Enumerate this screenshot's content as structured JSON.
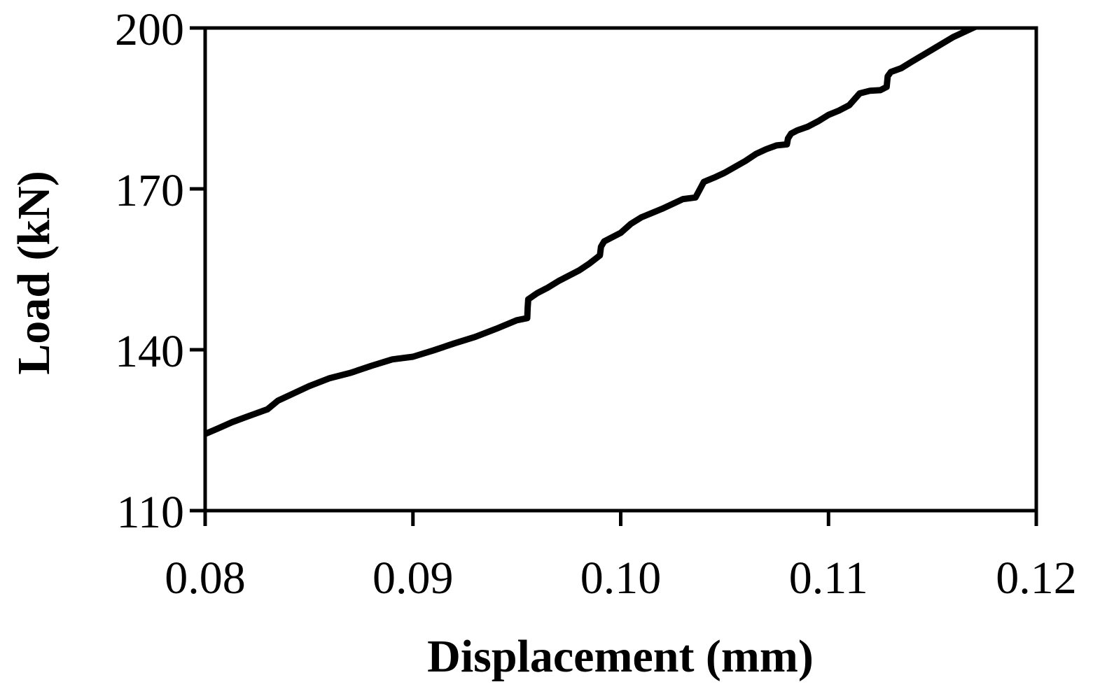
{
  "chart_data": {
    "type": "line",
    "title": "",
    "xlabel": "Displacement (mm)",
    "ylabel": "Load (kN)",
    "xlim": [
      0.08,
      0.12
    ],
    "ylim": [
      110,
      200
    ],
    "xticks": [
      0.08,
      0.09,
      0.1,
      0.11,
      0.12
    ],
    "xtick_labels": [
      "0.08",
      "0.09",
      "0.10",
      "0.11",
      "0.12"
    ],
    "yticks": [
      110,
      140,
      170,
      200
    ],
    "ytick_labels": [
      "110",
      "140",
      "170",
      "200"
    ],
    "grid": false,
    "legend": "none",
    "line_color": "#000000",
    "series": [
      {
        "x": [
          0.08,
          0.0806,
          0.0813,
          0.082,
          0.083,
          0.0835,
          0.084,
          0.085,
          0.086,
          0.087,
          0.088,
          0.089,
          0.09,
          0.091,
          0.092,
          0.093,
          0.094,
          0.095,
          0.0955,
          0.09552,
          0.09555,
          0.096,
          0.0965,
          0.097,
          0.098,
          0.0985,
          0.099,
          0.09905,
          0.0992,
          0.0995,
          0.1,
          0.1005,
          0.101,
          0.102,
          0.103,
          0.1036,
          0.10385,
          0.104,
          0.1045,
          0.105,
          0.106,
          0.1065,
          0.107,
          0.1075,
          0.108,
          0.10805,
          0.1082,
          0.1085,
          0.109,
          0.1095,
          0.11,
          0.1105,
          0.111,
          0.1115,
          0.112,
          0.1125,
          0.1128,
          0.11285,
          0.113,
          0.1135,
          0.114,
          0.115,
          0.116,
          0.117,
          0.1175,
          0.1182
        ],
        "y": [
          124.3,
          125.3,
          126.5,
          127.5,
          128.9,
          130.5,
          131.4,
          133.2,
          134.7,
          135.7,
          137.0,
          138.2,
          138.7,
          139.9,
          141.2,
          142.4,
          143.9,
          145.5,
          145.9,
          147.8,
          149.4,
          150.6,
          151.6,
          152.8,
          154.8,
          156.1,
          157.6,
          159.2,
          160.2,
          160.8,
          161.8,
          163.5,
          164.7,
          166.3,
          168.1,
          168.4,
          170.2,
          171.3,
          172.1,
          173.0,
          175.2,
          176.5,
          177.4,
          178.1,
          178.3,
          179.4,
          180.3,
          180.9,
          181.6,
          182.6,
          183.8,
          184.6,
          185.6,
          187.8,
          188.3,
          188.4,
          189.0,
          191.0,
          191.8,
          192.5,
          193.7,
          196.0,
          198.3,
          200.1,
          200.9,
          201.0
        ]
      }
    ]
  }
}
